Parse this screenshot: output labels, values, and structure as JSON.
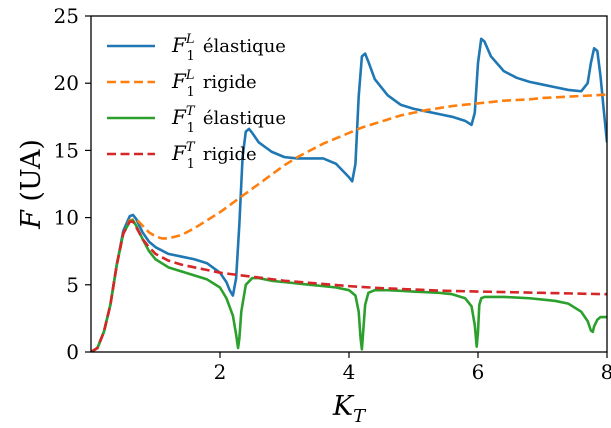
{
  "chart_data": {
    "type": "line",
    "xlabel": "K_T",
    "ylabel": "F (UA)",
    "xlim": [
      0,
      8
    ],
    "ylim": [
      0,
      25
    ],
    "xticks": [
      2,
      4,
      6,
      8
    ],
    "yticks": [
      0,
      5,
      10,
      15,
      20,
      25
    ],
    "grid": false,
    "legend_position": "top-left",
    "series": [
      {
        "name": "F_1^L élastique",
        "color": "#1f77b4",
        "dash": "solid",
        "x": [
          0,
          0.1,
          0.2,
          0.3,
          0.4,
          0.5,
          0.6,
          0.65,
          0.7,
          0.8,
          0.9,
          1.0,
          1.2,
          1.4,
          1.6,
          1.8,
          2.0,
          2.1,
          2.15,
          2.2,
          2.25,
          2.3,
          2.35,
          2.4,
          2.45,
          2.5,
          2.6,
          2.8,
          3.0,
          3.2,
          3.4,
          3.6,
          3.8,
          4.0,
          4.05,
          4.1,
          4.15,
          4.2,
          4.25,
          4.3,
          4.4,
          4.6,
          4.8,
          5.0,
          5.2,
          5.4,
          5.6,
          5.8,
          5.9,
          5.95,
          6.0,
          6.05,
          6.1,
          6.2,
          6.4,
          6.6,
          6.8,
          7.0,
          7.2,
          7.4,
          7.6,
          7.7,
          7.75,
          7.8,
          7.85,
          7.9,
          7.95,
          8.0
        ],
        "y": [
          0,
          0.3,
          1.5,
          3.5,
          6.5,
          9.0,
          10.1,
          10.2,
          9.9,
          8.9,
          8.2,
          7.8,
          7.3,
          7.1,
          6.9,
          6.6,
          5.9,
          5.2,
          4.6,
          4.2,
          5.5,
          9.5,
          14.5,
          16.4,
          16.6,
          16.3,
          15.6,
          14.9,
          14.5,
          14.4,
          14.4,
          14.4,
          14.0,
          13.0,
          12.7,
          14.0,
          19.0,
          22.0,
          22.2,
          21.6,
          20.3,
          19.1,
          18.4,
          18.1,
          17.9,
          17.7,
          17.5,
          17.2,
          16.9,
          17.8,
          21.5,
          23.3,
          23.1,
          22.0,
          20.9,
          20.4,
          20.1,
          19.9,
          19.7,
          19.5,
          19.4,
          20.0,
          21.5,
          22.6,
          22.4,
          20.5,
          18.0,
          15.6
        ]
      },
      {
        "name": "F_1^L rigide",
        "color": "#ff7f0e",
        "dash": "dashed",
        "x": [
          0,
          0.1,
          0.2,
          0.3,
          0.4,
          0.5,
          0.6,
          0.7,
          0.8,
          0.9,
          1.0,
          1.1,
          1.2,
          1.4,
          1.6,
          1.8,
          2.0,
          2.2,
          2.4,
          2.6,
          2.8,
          3.0,
          3.2,
          3.4,
          3.6,
          3.8,
          4.0,
          4.2,
          4.4,
          4.6,
          4.8,
          5.0,
          5.2,
          5.4,
          5.6,
          5.8,
          6.0,
          6.2,
          6.4,
          6.6,
          6.8,
          7.0,
          7.2,
          7.4,
          7.6,
          7.8,
          8.0
        ],
        "y": [
          0,
          0.3,
          1.5,
          3.5,
          6.5,
          8.8,
          9.8,
          9.9,
          9.4,
          8.9,
          8.6,
          8.45,
          8.45,
          8.7,
          9.2,
          9.8,
          10.4,
          11.1,
          11.8,
          12.5,
          13.2,
          13.9,
          14.5,
          15.0,
          15.5,
          15.9,
          16.3,
          16.7,
          17.0,
          17.3,
          17.6,
          17.8,
          18.0,
          18.15,
          18.3,
          18.4,
          18.5,
          18.6,
          18.7,
          18.75,
          18.8,
          18.9,
          18.95,
          19.0,
          19.05,
          19.1,
          19.15
        ]
      },
      {
        "name": "F_1^T élastique",
        "color": "#2ca02c",
        "dash": "solid",
        "x": [
          0,
          0.1,
          0.2,
          0.3,
          0.4,
          0.5,
          0.6,
          0.65,
          0.7,
          0.8,
          0.9,
          1.0,
          1.2,
          1.4,
          1.6,
          1.8,
          2.0,
          2.1,
          2.2,
          2.25,
          2.28,
          2.3,
          2.33,
          2.4,
          2.5,
          2.6,
          2.8,
          3.0,
          3.2,
          3.4,
          3.6,
          3.8,
          4.0,
          4.1,
          4.15,
          4.18,
          4.2,
          4.22,
          4.25,
          4.3,
          4.4,
          4.6,
          4.8,
          5.0,
          5.2,
          5.4,
          5.6,
          5.8,
          5.9,
          5.95,
          5.98,
          6.0,
          6.02,
          6.05,
          6.1,
          6.2,
          6.4,
          6.6,
          6.8,
          7.0,
          7.2,
          7.4,
          7.6,
          7.7,
          7.75,
          7.78,
          7.8,
          7.85,
          7.9,
          8.0
        ],
        "y": [
          0,
          0.3,
          1.5,
          3.5,
          6.5,
          8.8,
          9.7,
          9.8,
          9.4,
          8.4,
          7.5,
          6.9,
          6.3,
          6.0,
          5.7,
          5.4,
          4.8,
          4.0,
          2.7,
          1.3,
          0.3,
          1.0,
          3.0,
          5.0,
          5.5,
          5.5,
          5.3,
          5.2,
          5.1,
          5.0,
          4.9,
          4.8,
          4.6,
          4.2,
          3.0,
          1.0,
          0.2,
          1.5,
          3.5,
          4.4,
          4.6,
          4.6,
          4.55,
          4.5,
          4.45,
          4.4,
          4.3,
          4.0,
          3.4,
          2.0,
          0.4,
          1.5,
          3.5,
          4.0,
          4.1,
          4.1,
          4.1,
          4.05,
          4.0,
          3.9,
          3.8,
          3.6,
          3.0,
          2.3,
          1.6,
          1.5,
          1.9,
          2.4,
          2.6,
          2.6
        ]
      },
      {
        "name": "F_1^T rigide",
        "color": "#d62728",
        "dash": "dashed",
        "x": [
          0,
          0.1,
          0.2,
          0.3,
          0.4,
          0.5,
          0.6,
          0.65,
          0.7,
          0.8,
          0.9,
          1.0,
          1.2,
          1.4,
          1.6,
          1.8,
          2.0,
          2.5,
          3.0,
          3.5,
          4.0,
          4.5,
          5.0,
          5.5,
          6.0,
          6.5,
          7.0,
          7.5,
          8.0
        ],
        "y": [
          0,
          0.3,
          1.5,
          3.5,
          6.5,
          8.8,
          9.7,
          9.7,
          9.3,
          8.4,
          7.8,
          7.3,
          6.8,
          6.5,
          6.3,
          6.1,
          5.9,
          5.6,
          5.3,
          5.1,
          4.9,
          4.75,
          4.65,
          4.55,
          4.5,
          4.45,
          4.4,
          4.35,
          4.3
        ]
      }
    ]
  },
  "legend": [
    {
      "base": "F",
      "sub": "1",
      "sup": "L",
      "suffix": "élastique"
    },
    {
      "base": "F",
      "sub": "1",
      "sup": "L",
      "suffix": "rigide"
    },
    {
      "base": "F",
      "sub": "1",
      "sup": "T",
      "suffix": "élastique"
    },
    {
      "base": "F",
      "sub": "1",
      "sup": "T",
      "suffix": "rigide"
    }
  ],
  "xaxis_title": {
    "base": "K",
    "sub": "T"
  },
  "yaxis_title": {
    "base": "F",
    "rest": " (UA)"
  }
}
